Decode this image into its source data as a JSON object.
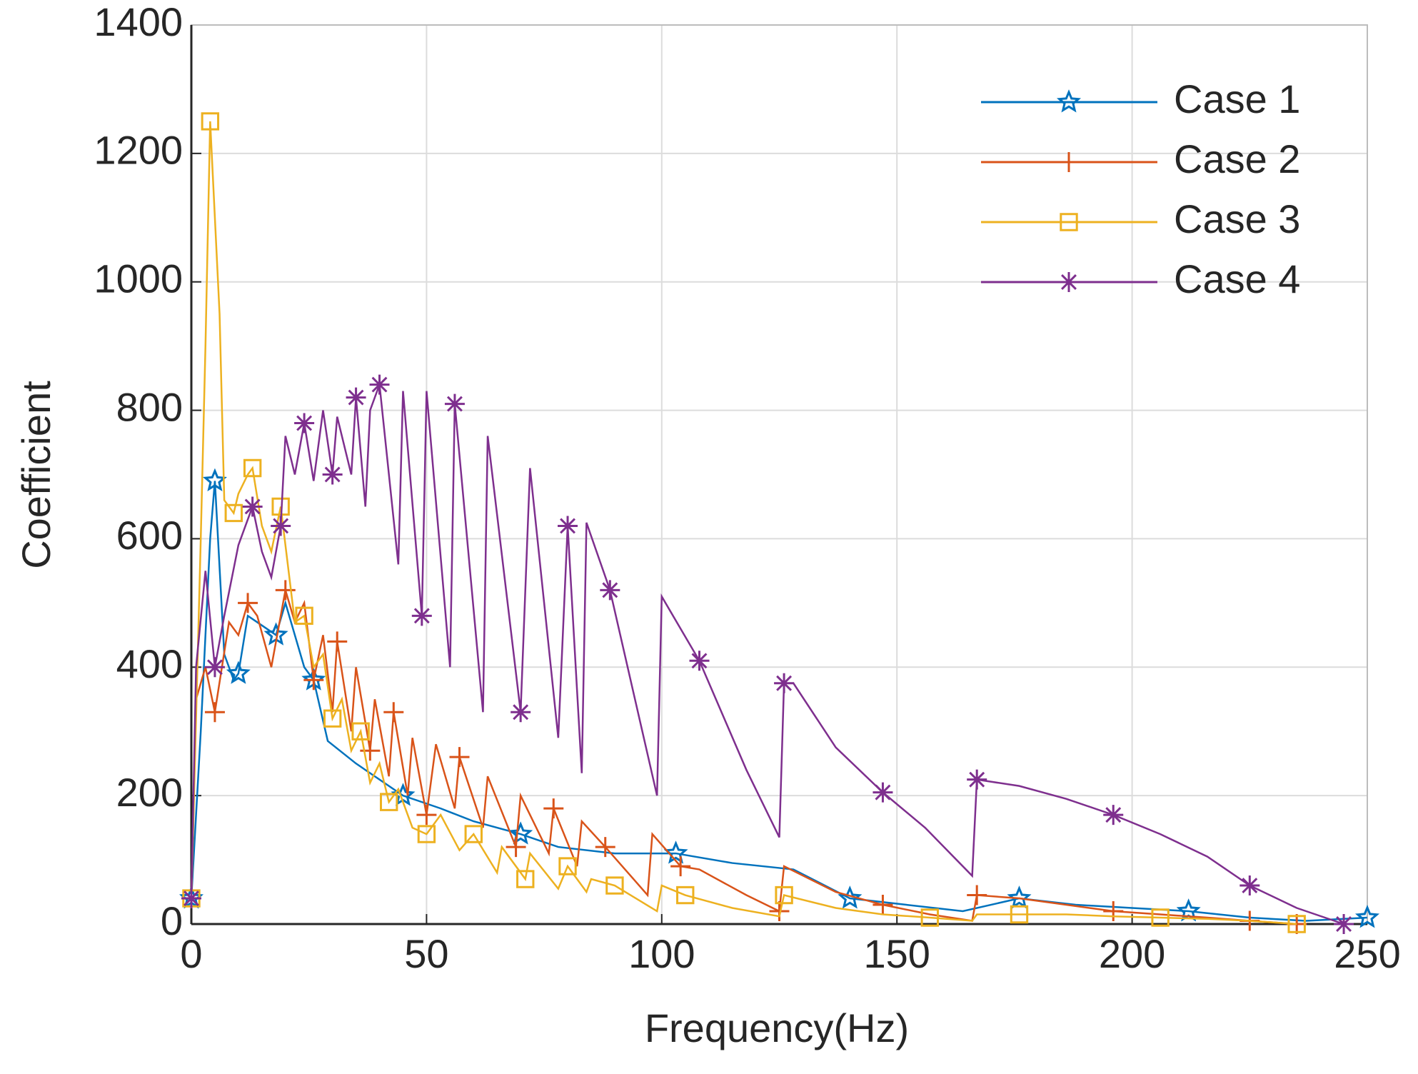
{
  "chart_data": {
    "type": "line",
    "xlabel": "Frequency(Hz)",
    "ylabel": "Coefficient",
    "xlim": [
      0,
      250
    ],
    "xticks": [
      0,
      50,
      100,
      150,
      200,
      250
    ],
    "ylim": [
      0,
      1400
    ],
    "yticks": [
      0,
      200,
      400,
      600,
      800,
      1000,
      1200,
      1400
    ],
    "grid": true,
    "legend": "upper right",
    "series": [
      {
        "name": "Case 1",
        "color": "#0072bd",
        "marker": "star",
        "x": [
          0,
          2,
          4,
          5,
          7,
          9,
          10,
          12,
          14,
          18,
          20,
          24,
          26,
          29,
          35,
          45,
          53,
          60,
          70,
          78,
          90,
          103,
          115,
          128,
          140,
          152,
          164,
          176,
          188,
          200,
          212,
          225,
          237,
          250
        ],
        "values": [
          40,
          300,
          600,
          690,
          420,
          380,
          390,
          480,
          470,
          450,
          500,
          400,
          380,
          285,
          250,
          200,
          180,
          160,
          140,
          120,
          110,
          110,
          95,
          85,
          40,
          30,
          20,
          40,
          30,
          25,
          20,
          10,
          5,
          10
        ]
      },
      {
        "name": "Case 2",
        "color": "#d95319",
        "marker": "plus",
        "x": [
          0,
          1,
          3,
          5,
          8,
          10,
          12,
          14,
          17,
          20,
          22,
          24,
          26,
          28,
          30,
          31,
          34,
          35,
          38,
          39,
          42,
          43,
          46,
          47,
          50,
          52,
          56,
          57,
          62,
          63,
          69,
          70,
          76,
          77,
          82,
          83,
          88,
          97,
          98,
          104,
          108,
          118,
          125,
          126,
          137,
          147,
          157,
          166,
          167,
          176,
          186,
          196,
          206,
          216,
          225,
          235
        ],
        "values": [
          40,
          350,
          400,
          330,
          470,
          450,
          500,
          480,
          400,
          520,
          470,
          500,
          380,
          450,
          330,
          440,
          300,
          400,
          270,
          350,
          230,
          330,
          200,
          290,
          170,
          280,
          180,
          260,
          150,
          230,
          120,
          200,
          110,
          180,
          90,
          160,
          120,
          45,
          140,
          90,
          85,
          45,
          20,
          90,
          50,
          30,
          15,
          5,
          45,
          40,
          30,
          20,
          15,
          10,
          5,
          0
        ]
      },
      {
        "name": "Case 3",
        "color": "#edb120",
        "marker": "square",
        "x": [
          0,
          2,
          3,
          4,
          6,
          7,
          9,
          10,
          12,
          13,
          15,
          17,
          19,
          20,
          22,
          24,
          26,
          28,
          30,
          32,
          34,
          36,
          38,
          40,
          42,
          44,
          47,
          50,
          53,
          57,
          60,
          65,
          66,
          71,
          72,
          78,
          80,
          84,
          85,
          90,
          99,
          100,
          105,
          115,
          125,
          126,
          137,
          147,
          157,
          166,
          167,
          176,
          186,
          196,
          206,
          216,
          225,
          235
        ],
        "values": [
          40,
          600,
          900,
          1250,
          950,
          660,
          640,
          670,
          700,
          710,
          620,
          580,
          650,
          590,
          470,
          480,
          400,
          420,
          320,
          350,
          270,
          300,
          220,
          250,
          190,
          210,
          150,
          140,
          170,
          115,
          140,
          80,
          120,
          70,
          110,
          55,
          90,
          50,
          70,
          60,
          20,
          60,
          45,
          25,
          12,
          45,
          25,
          15,
          10,
          5,
          15,
          15,
          15,
          12,
          10,
          8,
          5,
          0
        ]
      },
      {
        "name": "Case 4",
        "color": "#7e2f8e",
        "marker": "asterisk",
        "x": [
          0,
          1,
          3,
          5,
          7,
          10,
          13,
          15,
          17,
          19,
          20,
          22,
          24,
          26,
          28,
          30,
          31,
          34,
          35,
          37,
          38,
          40,
          44,
          45,
          49,
          50,
          55,
          56,
          62,
          63,
          70,
          72,
          78,
          80,
          83,
          84,
          89,
          99,
          100,
          108,
          118,
          125,
          126,
          128,
          137,
          147,
          156,
          166,
          167,
          176,
          186,
          196,
          206,
          216,
          225,
          235,
          245
        ],
        "values": [
          40,
          400,
          550,
          400,
          480,
          590,
          650,
          580,
          540,
          620,
          760,
          700,
          780,
          690,
          800,
          700,
          790,
          700,
          820,
          650,
          800,
          840,
          560,
          830,
          480,
          830,
          400,
          810,
          330,
          760,
          330,
          710,
          290,
          620,
          235,
          625,
          520,
          200,
          510,
          410,
          240,
          135,
          375,
          375,
          275,
          205,
          150,
          75,
          225,
          215,
          195,
          170,
          140,
          105,
          60,
          25,
          0
        ]
      }
    ]
  }
}
